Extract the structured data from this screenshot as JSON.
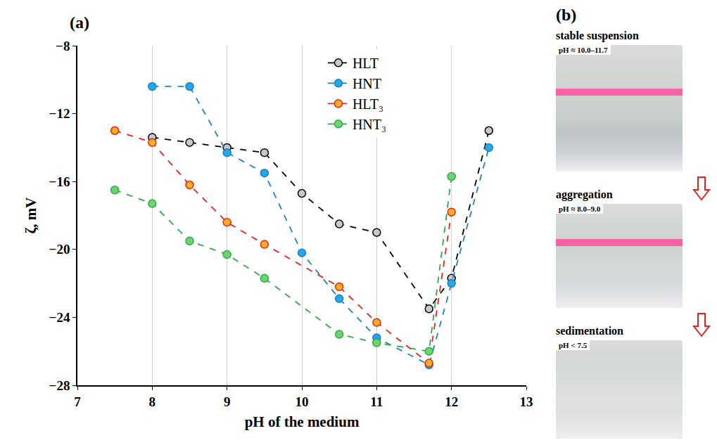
{
  "chart_data": {
    "type": "line",
    "panel_label": "(a)",
    "x_label": "pH of the medium",
    "y_label": "ζ, mV",
    "xlim": [
      7,
      13
    ],
    "xticks": [
      7,
      8,
      9,
      10,
      11,
      12,
      13
    ],
    "ylim": [
      -28,
      -8
    ],
    "yticks": [
      -28,
      -24,
      -20,
      -16,
      -12,
      -8
    ],
    "grid": "x",
    "legend": "top-right",
    "marker": "circle",
    "line_style": "dash",
    "series": [
      {
        "name": "HLT",
        "color": "#000000",
        "x": [
          8,
          8.5,
          9,
          9.5,
          10,
          10.5,
          11,
          11.7,
          12,
          12.5
        ],
        "values": [
          -13.4,
          -13.7,
          -14.0,
          -14.3,
          -16.7,
          -18.5,
          -19.0,
          -23.5,
          -21.7,
          -13.0
        ]
      },
      {
        "name": "HNT",
        "color": "#1f7fc8",
        "x": [
          8,
          8.5,
          9,
          9.5,
          10,
          10.5,
          11,
          11.7,
          12,
          12.5
        ],
        "values": [
          -10.4,
          -10.4,
          -14.3,
          -15.5,
          -20.2,
          -22.9,
          -25.2,
          -26.8,
          -22.0,
          -14.0
        ]
      },
      {
        "name": "HLT₃",
        "color": "#e8201a",
        "x": [
          7.5,
          8,
          8.5,
          9,
          9.5,
          10.5,
          11,
          11.7,
          12
        ],
        "values": [
          -13.0,
          -13.7,
          -16.2,
          -18.4,
          -19.7,
          -22.2,
          -24.3,
          -26.7,
          -17.8
        ]
      },
      {
        "name": "HNT₃",
        "color": "#2ea84a",
        "x": [
          7.5,
          8,
          8.5,
          9,
          9.5,
          10.5,
          11,
          11.7,
          12
        ],
        "values": [
          -16.5,
          -17.3,
          -19.5,
          -20.3,
          -21.7,
          -25.0,
          -25.5,
          -26.0,
          -15.7
        ]
      }
    ]
  },
  "panel_b": {
    "label": "(b)",
    "photos": [
      {
        "title": "stable suspension",
        "condition": "pH ≈ 10.0–11.7"
      },
      {
        "title": "aggregation",
        "condition": "pH ≈ 8.0–9.0"
      },
      {
        "title": "sedimentation",
        "condition": "pH < 7.5"
      }
    ]
  }
}
